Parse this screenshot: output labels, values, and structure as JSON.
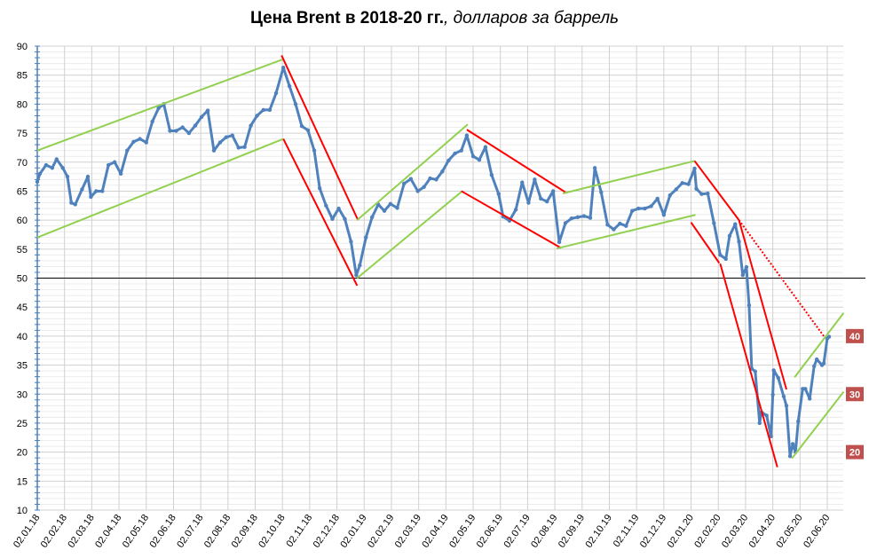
{
  "chart_data": {
    "type": "line",
    "title_bold": "Цена Brent в 2018-20 гг.",
    "title_italic": ", долларов за баррель",
    "xlabel": "",
    "ylabel": "",
    "ylim": [
      10,
      90
    ],
    "y_ticks": [
      10,
      15,
      20,
      25,
      30,
      35,
      40,
      45,
      50,
      55,
      60,
      65,
      70,
      75,
      80,
      85,
      90
    ],
    "x_tick_labels": [
      "02.01.18",
      "02.02.18",
      "02.03.18",
      "02.04.18",
      "02.05.18",
      "02.06.18",
      "02.07.18",
      "02.08.18",
      "02.09.18",
      "02.10.18",
      "02.11.18",
      "02.12.18",
      "02.01.19",
      "02.02.19",
      "02.03.19",
      "02.04.19",
      "02.05.19",
      "02.06.19",
      "02.07.19",
      "02.08.19",
      "02.09.19",
      "02.10.19",
      "02.11.19",
      "02.12.19",
      "02.01.20",
      "02.02.20",
      "02.03.20",
      "02.04.20",
      "02.05.20",
      "02.06.20"
    ],
    "grid": true,
    "reference_line": 50,
    "colors": {
      "series": "#4f81bd",
      "support": "#92d050",
      "resistance": "#ff0000",
      "label_box": "#c0504d",
      "axis": "#4a7ebb"
    },
    "series": [
      {
        "points": [
          [
            "2018-01-02",
            66.6
          ],
          [
            "2018-01-05",
            68
          ],
          [
            "2018-01-12",
            69.5
          ],
          [
            "2018-01-19",
            69
          ],
          [
            "2018-01-24",
            70.5
          ],
          [
            "2018-01-31",
            69
          ],
          [
            "2018-02-05",
            67.5
          ],
          [
            "2018-02-09",
            63
          ],
          [
            "2018-02-13",
            62.7
          ],
          [
            "2018-02-20",
            65.3
          ],
          [
            "2018-02-26",
            67.5
          ],
          [
            "2018-03-01",
            64
          ],
          [
            "2018-03-07",
            65
          ],
          [
            "2018-03-14",
            65
          ],
          [
            "2018-03-21",
            69.5
          ],
          [
            "2018-03-28",
            70
          ],
          [
            "2018-04-04",
            68
          ],
          [
            "2018-04-11",
            72
          ],
          [
            "2018-04-18",
            73.5
          ],
          [
            "2018-04-25",
            74
          ],
          [
            "2018-05-02",
            73.4
          ],
          [
            "2018-05-09",
            77
          ],
          [
            "2018-05-16",
            79.3
          ],
          [
            "2018-05-22",
            80
          ],
          [
            "2018-05-29",
            75.4
          ],
          [
            "2018-06-05",
            75.4
          ],
          [
            "2018-06-12",
            76
          ],
          [
            "2018-06-19",
            75
          ],
          [
            "2018-06-26",
            76.3
          ],
          [
            "2018-07-03",
            77.8
          ],
          [
            "2018-07-10",
            78.9
          ],
          [
            "2018-07-17",
            72
          ],
          [
            "2018-07-24",
            73.4
          ],
          [
            "2018-07-31",
            74.3
          ],
          [
            "2018-08-07",
            74.6
          ],
          [
            "2018-08-14",
            72.5
          ],
          [
            "2018-08-21",
            72.6
          ],
          [
            "2018-08-28",
            76.3
          ],
          [
            "2018-09-04",
            78
          ],
          [
            "2018-09-11",
            79
          ],
          [
            "2018-09-18",
            79
          ],
          [
            "2018-09-25",
            81.9
          ],
          [
            "2018-10-03",
            86.3
          ],
          [
            "2018-10-10",
            83.1
          ],
          [
            "2018-10-17",
            80
          ],
          [
            "2018-10-24",
            76.2
          ],
          [
            "2018-10-31",
            75.5
          ],
          [
            "2018-11-07",
            72
          ],
          [
            "2018-11-13",
            65.5
          ],
          [
            "2018-11-20",
            62.5
          ],
          [
            "2018-11-27",
            60.2
          ],
          [
            "2018-12-04",
            62
          ],
          [
            "2018-12-11",
            60.2
          ],
          [
            "2018-12-18",
            56.3
          ],
          [
            "2018-12-24",
            50.5
          ],
          [
            "2018-12-28",
            52.2
          ],
          [
            "2019-01-04",
            57
          ],
          [
            "2019-01-11",
            60.5
          ],
          [
            "2019-01-18",
            62.7
          ],
          [
            "2019-01-25",
            61.6
          ],
          [
            "2019-02-01",
            62.8
          ],
          [
            "2019-02-08",
            62.1
          ],
          [
            "2019-02-15",
            66.3
          ],
          [
            "2019-02-22",
            67.1
          ],
          [
            "2019-03-01",
            65
          ],
          [
            "2019-03-08",
            65.7
          ],
          [
            "2019-03-15",
            67.2
          ],
          [
            "2019-03-22",
            67
          ],
          [
            "2019-03-29",
            68.4
          ],
          [
            "2019-04-05",
            70.3
          ],
          [
            "2019-04-12",
            71.5
          ],
          [
            "2019-04-19",
            72
          ],
          [
            "2019-04-25",
            74.6
          ],
          [
            "2019-05-02",
            71
          ],
          [
            "2019-05-09",
            70.4
          ],
          [
            "2019-05-16",
            72.6
          ],
          [
            "2019-05-23",
            67.8
          ],
          [
            "2019-05-31",
            64.5
          ],
          [
            "2019-06-05",
            60.6
          ],
          [
            "2019-06-12",
            59.9
          ],
          [
            "2019-06-19",
            61.8
          ],
          [
            "2019-06-26",
            66.5
          ],
          [
            "2019-07-03",
            63
          ],
          [
            "2019-07-10",
            67
          ],
          [
            "2019-07-17",
            63.7
          ],
          [
            "2019-07-24",
            63.2
          ],
          [
            "2019-07-31",
            65
          ],
          [
            "2019-08-07",
            56.2
          ],
          [
            "2019-08-14",
            59.5
          ],
          [
            "2019-08-21",
            60.3
          ],
          [
            "2019-08-28",
            60.5
          ],
          [
            "2019-09-04",
            60.7
          ],
          [
            "2019-09-11",
            60.4
          ],
          [
            "2019-09-16",
            69
          ],
          [
            "2019-09-23",
            64.8
          ],
          [
            "2019-09-30",
            59.2
          ],
          [
            "2019-10-07",
            58.4
          ],
          [
            "2019-10-14",
            59.4
          ],
          [
            "2019-10-21",
            59
          ],
          [
            "2019-10-28",
            61.6
          ],
          [
            "2019-11-04",
            62
          ],
          [
            "2019-11-11",
            62
          ],
          [
            "2019-11-18",
            62.4
          ],
          [
            "2019-11-25",
            63.7
          ],
          [
            "2019-12-02",
            60.9
          ],
          [
            "2019-12-09",
            64.3
          ],
          [
            "2019-12-16",
            65.3
          ],
          [
            "2019-12-23",
            66.4
          ],
          [
            "2019-12-30",
            66.2
          ],
          [
            "2020-01-06",
            68.9
          ],
          [
            "2020-01-08",
            65.4
          ],
          [
            "2020-01-14",
            64.5
          ],
          [
            "2020-01-21",
            64.6
          ],
          [
            "2020-01-28",
            59.5
          ],
          [
            "2020-02-04",
            54
          ],
          [
            "2020-02-10",
            53.3
          ],
          [
            "2020-02-14",
            57.3
          ],
          [
            "2020-02-20",
            59.3
          ],
          [
            "2020-02-24",
            56.3
          ],
          [
            "2020-02-28",
            50.5
          ],
          [
            "2020-03-03",
            51.9
          ],
          [
            "2020-03-06",
            45.3
          ],
          [
            "2020-03-09",
            34.4
          ],
          [
            "2020-03-13",
            33.9
          ],
          [
            "2020-03-18",
            25
          ],
          [
            "2020-03-20",
            26.9
          ],
          [
            "2020-03-26",
            26.3
          ],
          [
            "2020-03-31",
            22.7
          ],
          [
            "2020-04-02",
            29.9
          ],
          [
            "2020-04-03",
            34.1
          ],
          [
            "2020-04-08",
            32.8
          ],
          [
            "2020-04-14",
            29.6
          ],
          [
            "2020-04-17",
            28
          ],
          [
            "2020-04-21",
            19.3
          ],
          [
            "2020-04-24",
            21.4
          ],
          [
            "2020-04-27",
            20
          ],
          [
            "2020-04-30",
            25.3
          ],
          [
            "2020-05-05",
            30.9
          ],
          [
            "2020-05-08",
            30.9
          ],
          [
            "2020-05-13",
            29.2
          ],
          [
            "2020-05-18",
            34.8
          ],
          [
            "2020-05-21",
            36
          ],
          [
            "2020-05-27",
            35
          ],
          [
            "2020-05-29",
            35.3
          ],
          [
            "2020-06-02",
            39.6
          ],
          [
            "2020-06-04",
            39.9
          ]
        ]
      }
    ],
    "trend_lines": [
      {
        "color": "support",
        "from": [
          "2018-01-02",
          72
        ],
        "to": [
          "2018-10-02",
          87.7
        ]
      },
      {
        "color": "support",
        "from": [
          "2018-01-02",
          57
        ],
        "to": [
          "2018-10-03",
          74
        ]
      },
      {
        "color": "resistance",
        "from": [
          "2018-10-01",
          88.4
        ],
        "to": [
          "2018-12-26",
          60
        ]
      },
      {
        "color": "resistance",
        "from": [
          "2018-10-03",
          74
        ],
        "to": [
          "2018-12-25",
          48.7
        ]
      },
      {
        "color": "support",
        "from": [
          "2018-12-25",
          60
        ],
        "to": [
          "2019-04-26",
          76.5
        ]
      },
      {
        "color": "support",
        "from": [
          "2018-12-25",
          50
        ],
        "to": [
          "2019-04-20",
          65
        ]
      },
      {
        "color": "resistance",
        "from": [
          "2019-04-25",
          75.6
        ],
        "to": [
          "2019-08-14",
          64.8
        ]
      },
      {
        "color": "resistance",
        "from": [
          "2019-04-19",
          65
        ],
        "to": [
          "2019-08-09",
          55.2
        ]
      },
      {
        "color": "support",
        "from": [
          "2019-08-11",
          64.6
        ],
        "to": [
          "2020-01-06",
          70.2
        ]
      },
      {
        "color": "support",
        "from": [
          "2019-08-04",
          55.1
        ],
        "to": [
          "2020-01-07",
          60.9
        ]
      },
      {
        "color": "resistance",
        "from": [
          "2020-01-06",
          70.2
        ],
        "to": [
          "2020-02-24",
          60
        ]
      },
      {
        "color": "resistance",
        "from": [
          "2020-01-02",
          59.6
        ],
        "to": [
          "2020-02-03",
          52.6
        ]
      },
      {
        "color": "resistance",
        "from": [
          "2020-02-04",
          52.5
        ],
        "to": [
          "2020-04-07",
          17.4
        ]
      },
      {
        "color": "resistance",
        "from": [
          "2020-02-24",
          60
        ],
        "to": [
          "2020-04-17",
          30.8
        ]
      },
      {
        "color": "resistance",
        "dashed": true,
        "from": [
          "2020-02-24",
          60
        ],
        "to": [
          "2020-05-29",
          40
        ]
      },
      {
        "color": "support",
        "from": [
          "2020-04-26",
          32.9
        ],
        "to": [
          "2020-06-20",
          44
        ]
      },
      {
        "color": "support",
        "from": [
          "2020-04-23",
          18.9
        ],
        "to": [
          "2020-06-20",
          30.4
        ]
      }
    ],
    "level_labels": [
      {
        "text": "40",
        "value": 40
      },
      {
        "text": "30",
        "value": 30
      },
      {
        "text": "20",
        "value": 20
      }
    ]
  }
}
